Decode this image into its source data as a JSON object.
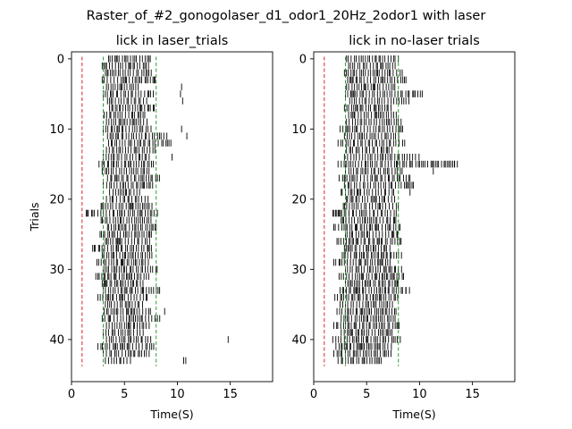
{
  "figure": {
    "suptitle": "Raster_of_#2_gonogolaser_d1_odor1_20Hz_2odor1 with laser"
  },
  "chart_data": [
    {
      "type": "scatter",
      "title": "lick in laser_trials",
      "xlabel": "Time(S)",
      "ylabel": "Trials",
      "xlim": [
        0,
        19
      ],
      "ylim": [
        46,
        -1
      ],
      "xticks": [
        0,
        5,
        10,
        15
      ],
      "yticks": [
        0,
        10,
        20,
        30,
        40
      ],
      "grid": false,
      "trials": 44,
      "markers": [
        {
          "x": 1,
          "color": "#d62728",
          "style": "dashed"
        },
        {
          "x": 3,
          "color": "#2ca02c",
          "style": "dashed"
        },
        {
          "x": 8,
          "color": "#2ca02c",
          "style": "dashed"
        }
      ],
      "lick_extent": [
        [
          3.5,
          7.6
        ],
        [
          2.9,
          7.4
        ],
        [
          3.2,
          7.6
        ],
        [
          2.9,
          8.1
        ],
        [
          3.3,
          6.4
        ],
        [
          3.0,
          7.8
        ],
        [
          3.4,
          7.2
        ],
        [
          3.6,
          7.9
        ],
        [
          3.1,
          7.1
        ],
        [
          3.3,
          7.3
        ],
        [
          3.0,
          7.6
        ],
        [
          3.4,
          9.2
        ],
        [
          3.5,
          9.4
        ],
        [
          3.3,
          8.2
        ],
        [
          3.0,
          7.5
        ],
        [
          2.6,
          7.9
        ],
        [
          2.9,
          7.4
        ],
        [
          3.4,
          8.4
        ],
        [
          3.0,
          7.8
        ],
        [
          3.6,
          6.5
        ],
        [
          3.3,
          7.4
        ],
        [
          2.8,
          7.7
        ],
        [
          1.4,
          8.2
        ],
        [
          2.8,
          7.6
        ],
        [
          3.4,
          8.1
        ],
        [
          2.7,
          7.6
        ],
        [
          3.2,
          7.4
        ],
        [
          2.0,
          7.6
        ],
        [
          2.9,
          7.9
        ],
        [
          2.4,
          7.4
        ],
        [
          3.0,
          8.2
        ],
        [
          2.3,
          7.5
        ],
        [
          2.9,
          6.9
        ],
        [
          3.0,
          8.4
        ],
        [
          2.5,
          7.3
        ],
        [
          3.2,
          6.8
        ],
        [
          3.1,
          7.6
        ],
        [
          2.9,
          8.5
        ],
        [
          3.3,
          7.6
        ],
        [
          3.0,
          6.8
        ],
        [
          3.3,
          7.5
        ],
        [
          2.5,
          7.8
        ],
        [
          3.0,
          7.4
        ],
        [
          3.2,
          5.8
        ]
      ],
      "extra_licks": [
        {
          "trial": 4,
          "x": 10.4
        },
        {
          "trial": 5,
          "x": 10.3
        },
        {
          "trial": 6,
          "x": 10.5
        },
        {
          "trial": 10,
          "x": 10.4
        },
        {
          "trial": 11,
          "x": 10.9
        },
        {
          "trial": 14,
          "x": 9.5
        },
        {
          "trial": 36,
          "x": 8.8
        },
        {
          "trial": 40,
          "x": 14.8
        },
        {
          "trial": 43,
          "x": 10.6
        },
        {
          "trial": 43,
          "x": 10.8
        }
      ]
    },
    {
      "type": "scatter",
      "title": "lick in no-laser trials",
      "xlabel": "Time(S)",
      "ylabel": "",
      "xlim": [
        0,
        19
      ],
      "ylim": [
        46,
        -1
      ],
      "xticks": [
        0,
        5,
        10,
        15
      ],
      "yticks": [
        0,
        10,
        20,
        30,
        40
      ],
      "grid": false,
      "trials": 44,
      "markers": [
        {
          "x": 1,
          "color": "#d62728",
          "style": "dashed"
        },
        {
          "x": 3,
          "color": "#2ca02c",
          "style": "dashed"
        },
        {
          "x": 8,
          "color": "#2ca02c",
          "style": "dashed"
        }
      ],
      "lick_extent": [
        [
          3.1,
          8.0
        ],
        [
          3.3,
          7.7
        ],
        [
          2.9,
          8.4
        ],
        [
          3.2,
          8.8
        ],
        [
          3.1,
          7.9
        ],
        [
          3.0,
          10.4
        ],
        [
          3.4,
          9.0
        ],
        [
          2.9,
          7.4
        ],
        [
          3.3,
          7.8
        ],
        [
          3.1,
          8.5
        ],
        [
          2.5,
          8.4
        ],
        [
          2.9,
          8.2
        ],
        [
          2.3,
          8.9
        ],
        [
          3.1,
          7.4
        ],
        [
          2.9,
          10.1
        ],
        [
          2.3,
          13.6
        ],
        [
          3.0,
          8.4
        ],
        [
          2.4,
          9.1
        ],
        [
          2.9,
          9.6
        ],
        [
          2.6,
          7.8
        ],
        [
          3.1,
          7.9
        ],
        [
          2.8,
          8.2
        ],
        [
          1.8,
          8.1
        ],
        [
          2.6,
          7.8
        ],
        [
          1.9,
          8.3
        ],
        [
          3.0,
          8.2
        ],
        [
          2.2,
          8.3
        ],
        [
          2.9,
          7.2
        ],
        [
          2.7,
          8.3
        ],
        [
          1.9,
          7.4
        ],
        [
          3.0,
          8.4
        ],
        [
          2.4,
          8.7
        ],
        [
          3.0,
          8.1
        ],
        [
          2.5,
          9.1
        ],
        [
          2.0,
          8.0
        ],
        [
          2.5,
          7.5
        ],
        [
          2.2,
          7.8
        ],
        [
          2.6,
          7.7
        ],
        [
          1.9,
          8.2
        ],
        [
          2.6,
          7.5
        ],
        [
          1.8,
          8.2
        ],
        [
          2.1,
          7.6
        ],
        [
          1.9,
          7.4
        ],
        [
          2.3,
          6.4
        ]
      ],
      "extra_licks": [
        {
          "trial": 15,
          "x": 12.8
        },
        {
          "trial": 15,
          "x": 13.3
        },
        {
          "trial": 16,
          "x": 11.3
        },
        {
          "trial": 19,
          "x": 9.1
        },
        {
          "trial": 33,
          "x": 8.7
        }
      ]
    }
  ]
}
